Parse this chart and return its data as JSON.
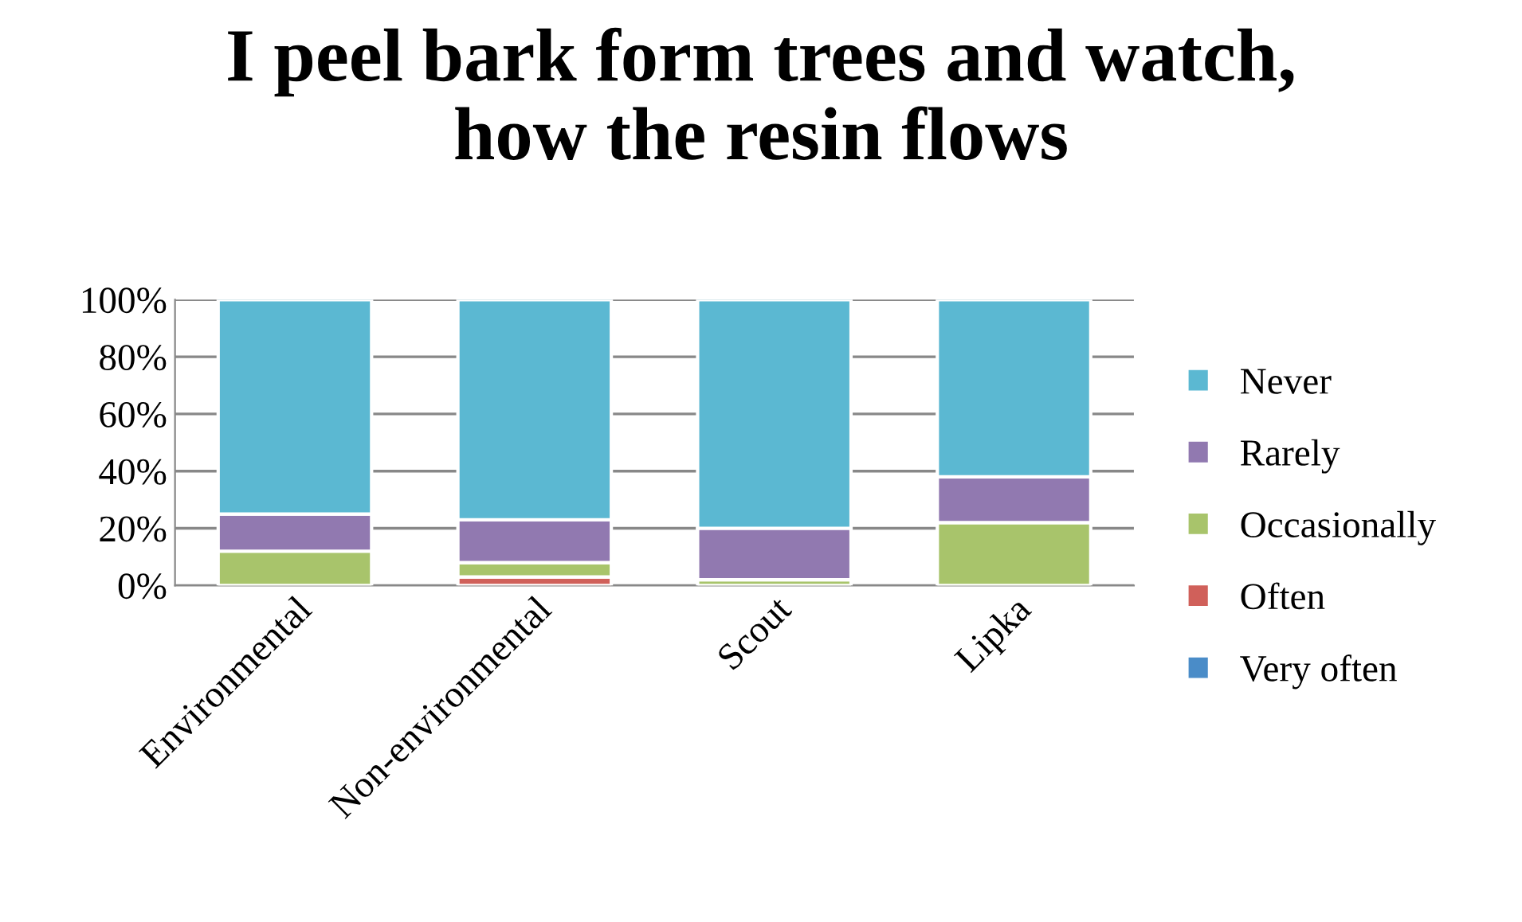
{
  "chart_data": {
    "type": "bar",
    "stacked": true,
    "title": "I peel bark form trees and watch,\nhow the resin flows",
    "categories": [
      "Environmental",
      "Non-environmental",
      "Scout",
      "Lipka"
    ],
    "series": [
      {
        "name": "Very often",
        "color": "#4a8cc8",
        "values": [
          null,
          null,
          0,
          0
        ]
      },
      {
        "name": "Often",
        "color": "#d0605a",
        "values": [
          0,
          3,
          0,
          0
        ]
      },
      {
        "name": "Occasionally",
        "color": "#a8c46b",
        "values": [
          12,
          5,
          2,
          22
        ]
      },
      {
        "name": "Rarely",
        "color": "#9179b0",
        "values": [
          13,
          15,
          18,
          16
        ]
      },
      {
        "name": "Never",
        "color": "#5bb8d2",
        "values": [
          75,
          77,
          80,
          62
        ]
      }
    ],
    "ylim": [
      0,
      100
    ],
    "yticks": [
      {
        "value": 0,
        "label": "0%"
      },
      {
        "value": 20,
        "label": "20%"
      },
      {
        "value": 40,
        "label": "40%"
      },
      {
        "value": 60,
        "label": "60%"
      },
      {
        "value": 80,
        "label": "80%"
      },
      {
        "value": 100,
        "label": "100%"
      }
    ],
    "grid": "y",
    "legend": "right"
  }
}
